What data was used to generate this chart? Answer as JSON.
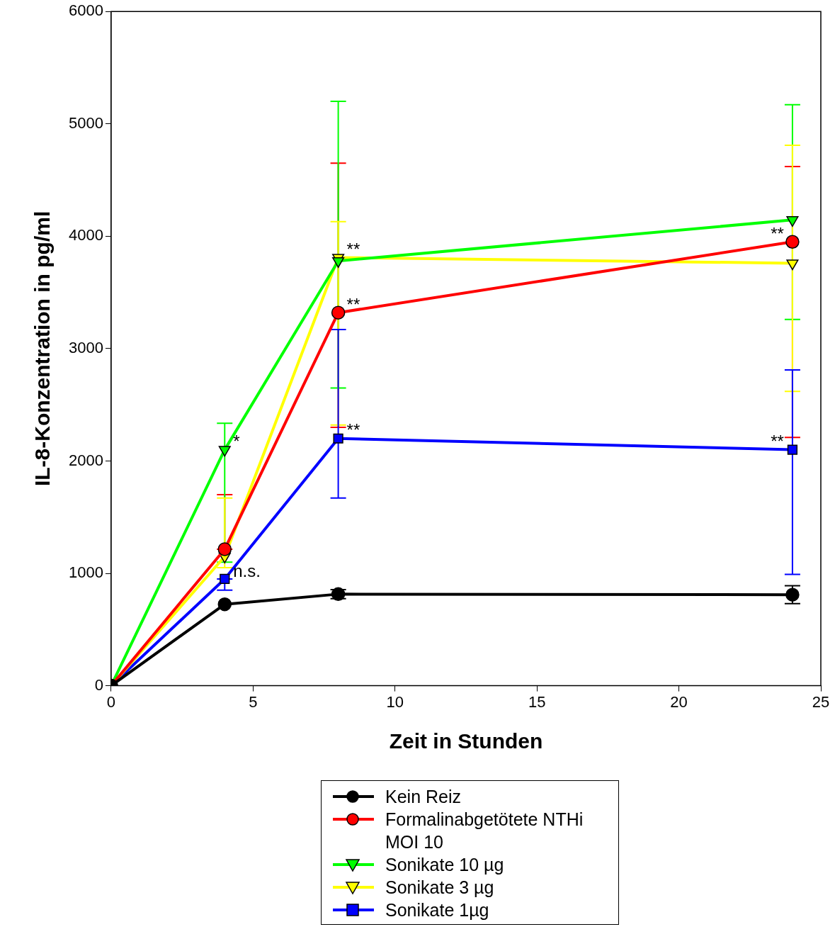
{
  "chart_data": {
    "type": "line",
    "xlabel": "Zeit in Stunden",
    "ylabel": "IL-8-Konzentration in pg/ml",
    "xlim": [
      0,
      25
    ],
    "xticks": [
      0,
      5,
      10,
      15,
      20,
      25
    ],
    "ylim": [
      0,
      6000
    ],
    "yticks": [
      0,
      1000,
      2000,
      3000,
      4000,
      5000,
      6000
    ],
    "grid": false,
    "legend": "bottom",
    "line_style": "solid",
    "series": [
      {
        "name": "Kein Reiz",
        "color": "#000000",
        "marker": "circle",
        "x": [
          0,
          4,
          8,
          24
        ],
        "values": [
          0,
          725,
          815,
          810
        ],
        "errors": [
          null,
          null,
          [
            775,
            855
          ],
          [
            730,
            890
          ]
        ]
      },
      {
        "name": "Formalinabgetötete NTHi\nMOI 10",
        "color": "#ff0000",
        "marker": "circle",
        "x": [
          0,
          4,
          8,
          24
        ],
        "values": [
          0,
          1215,
          3320,
          3950
        ],
        "errors": [
          null,
          [
            1215,
            1700
          ],
          [
            2300,
            4650
          ],
          [
            2210,
            4620
          ]
        ]
      },
      {
        "name": "Sonikate 10 µg",
        "color": "#00ff00",
        "marker": "triangle",
        "x": [
          0,
          4,
          8,
          24
        ],
        "values": [
          0,
          2100,
          3780,
          4145
        ],
        "errors": [
          null,
          [
            1100,
            2335
          ],
          [
            2650,
            5200
          ],
          [
            3260,
            5170
          ]
        ]
      },
      {
        "name": "Sonikate 3 µg",
        "color": "#ffff00",
        "marker": "triangle",
        "x": [
          0,
          4,
          8,
          24
        ],
        "values": [
          0,
          1150,
          3810,
          3760
        ],
        "errors": [
          null,
          [
            1050,
            1670
          ],
          [
            2320,
            4130
          ],
          [
            2620,
            4810
          ]
        ]
      },
      {
        "name": "Sonikate 1µg",
        "color": "#0000ff",
        "marker": "square",
        "x": [
          0,
          4,
          8,
          24
        ],
        "values": [
          0,
          950,
          2200,
          2100
        ],
        "errors": [
          null,
          [
            850,
            950
          ],
          [
            1670,
            3170
          ],
          [
            990,
            2810
          ]
        ]
      }
    ],
    "annotations": [
      {
        "text": "*",
        "x": 4,
        "y": 2100
      },
      {
        "text": "n.s.",
        "x": 4,
        "y": 950
      },
      {
        "text": "**",
        "x": 8,
        "y": 3810
      },
      {
        "text": "**",
        "x": 8,
        "y": 3320
      },
      {
        "text": "**",
        "x": 8,
        "y": 2200
      },
      {
        "text": "**",
        "x": 24,
        "y": 3950
      },
      {
        "text": "**",
        "x": 24,
        "y": 2100
      }
    ]
  }
}
